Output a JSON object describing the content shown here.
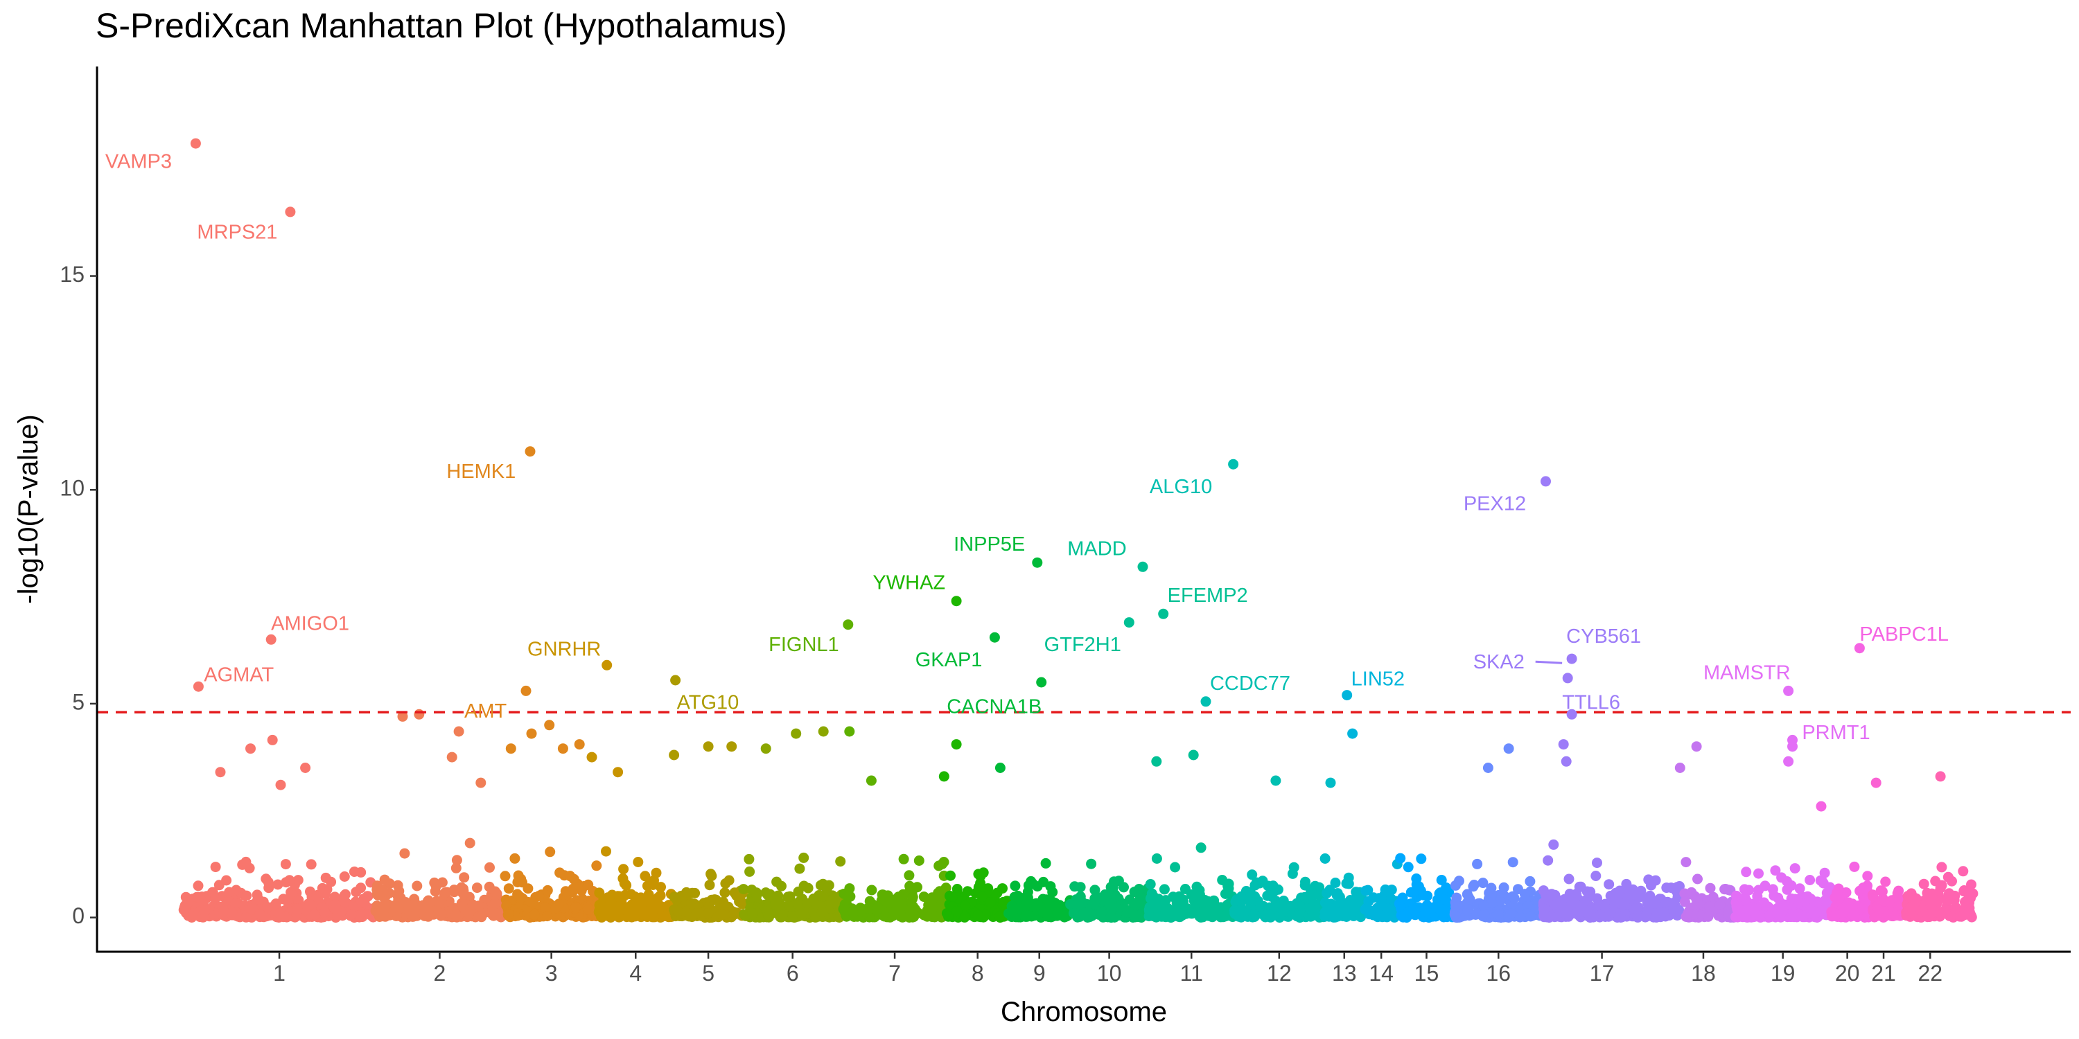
{
  "chart_data": {
    "type": "scatter",
    "title": "S-PrediXcan Manhattan Plot (Hypothalamus)",
    "xlabel": "Chromosome",
    "ylabel": "-log10(P-value)",
    "ylim": [
      -0.8,
      19.9
    ],
    "yticks": [
      0,
      5,
      10,
      15
    ],
    "xlim": [
      0,
      2880
    ],
    "threshold": 4.8,
    "threshold_color": "#e41a1c",
    "grid": false,
    "legend": "none",
    "chromosomes": [
      {
        "label": "1",
        "start": 126,
        "end": 406,
        "center": 266,
        "color": "#f8766d"
      },
      {
        "label": "2",
        "start": 406,
        "end": 595,
        "center": 500,
        "color": "#f07e56"
      },
      {
        "label": "3",
        "start": 595,
        "end": 731,
        "center": 663,
        "color": "#e0871d"
      },
      {
        "label": "4",
        "start": 731,
        "end": 842,
        "center": 786,
        "color": "#c89400"
      },
      {
        "label": "5",
        "start": 842,
        "end": 943,
        "center": 892,
        "color": "#ac9b00"
      },
      {
        "label": "6",
        "start": 943,
        "end": 1088,
        "center": 1015,
        "color": "#8ba600"
      },
      {
        "label": "7",
        "start": 1088,
        "end": 1240,
        "center": 1164,
        "color": "#5eb000"
      },
      {
        "label": "8",
        "start": 1240,
        "end": 1330,
        "center": 1285,
        "color": "#1db600"
      },
      {
        "label": "9",
        "start": 1330,
        "end": 1420,
        "center": 1375,
        "color": "#00ba38"
      },
      {
        "label": "10",
        "start": 1420,
        "end": 1534,
        "center": 1477,
        "color": "#00bd6c"
      },
      {
        "label": "11",
        "start": 1534,
        "end": 1660,
        "center": 1597,
        "color": "#00c094"
      },
      {
        "label": "12",
        "start": 1660,
        "end": 1790,
        "center": 1725,
        "color": "#00bfb1"
      },
      {
        "label": "13",
        "start": 1790,
        "end": 1850,
        "center": 1820,
        "color": "#00bcc6"
      },
      {
        "label": "14",
        "start": 1850,
        "end": 1900,
        "center": 1874,
        "color": "#00b5dc"
      },
      {
        "label": "15",
        "start": 1900,
        "end": 1980,
        "center": 1940,
        "color": "#00a9ff"
      },
      {
        "label": "16",
        "start": 1980,
        "end": 2110,
        "center": 2045,
        "color": "#6b8cff"
      },
      {
        "label": "17",
        "start": 2110,
        "end": 2310,
        "center": 2196,
        "color": "#9c7cf8"
      },
      {
        "label": "18",
        "start": 2310,
        "end": 2390,
        "center": 2344,
        "color": "#c475f0"
      },
      {
        "label": "19",
        "start": 2390,
        "end": 2530,
        "center": 2460,
        "color": "#e36ef6"
      },
      {
        "label": "20",
        "start": 2530,
        "end": 2590,
        "center": 2554,
        "color": "#f564e3"
      },
      {
        "label": "21",
        "start": 2590,
        "end": 2640,
        "center": 2607,
        "color": "#fa62d3"
      },
      {
        "label": "22",
        "start": 2640,
        "end": 2740,
        "center": 2675,
        "color": "#ff64b0"
      }
    ],
    "highlighted": [
      {
        "gene": "VAMP3",
        "chr": "1",
        "x": 144,
        "y": 18.1,
        "label_x": 12,
        "label_y": 17.65,
        "anchor": "start"
      },
      {
        "gene": "MRPS21",
        "chr": "1",
        "x": 282,
        "y": 16.5,
        "label_x": 146,
        "label_y": 16.0,
        "anchor": "start"
      },
      {
        "gene": "AMIGO1",
        "chr": "1",
        "x": 254,
        "y": 6.5,
        "label_x": 254,
        "label_y": 6.85,
        "anchor": "start"
      },
      {
        "gene": "AGMAT",
        "chr": "1",
        "x": 148,
        "y": 5.4,
        "label_x": 156,
        "label_y": 5.65,
        "anchor": "start"
      },
      {
        "gene": "HEMK1",
        "chr": "3",
        "x": 632,
        "y": 10.9,
        "label_x": 510,
        "label_y": 10.4,
        "anchor": "start"
      },
      {
        "gene": "GNRHR",
        "chr": "4",
        "x": 744,
        "y": 5.9,
        "label_x": 628,
        "label_y": 6.25,
        "anchor": "start"
      },
      {
        "gene": "AMT",
        "chr": "3",
        "x": 626,
        "y": 5.3,
        "label_x": 536,
        "label_y": 4.8,
        "anchor": "start"
      },
      {
        "gene": "ATG10",
        "chr": "5",
        "x": 844,
        "y": 5.55,
        "label_x": 846,
        "label_y": 5.0,
        "anchor": "start"
      },
      {
        "gene": "FIGNL1",
        "chr": "7",
        "x": 1096,
        "y": 6.85,
        "label_x": 980,
        "label_y": 6.35,
        "anchor": "start"
      },
      {
        "gene": "YWHAZ",
        "chr": "8",
        "x": 1254,
        "y": 7.4,
        "label_x": 1132,
        "label_y": 7.8,
        "anchor": "start"
      },
      {
        "gene": "INPP5E",
        "chr": "9",
        "x": 1372,
        "y": 8.3,
        "label_x": 1250,
        "label_y": 8.7,
        "anchor": "start"
      },
      {
        "gene": "MADD",
        "chr": "11",
        "x": 1526,
        "y": 8.2,
        "label_x": 1416,
        "label_y": 8.6,
        "anchor": "start"
      },
      {
        "gene": "GKAP1",
        "chr": "9",
        "x": 1310,
        "y": 6.55,
        "label_x": 1194,
        "label_y": 6.0,
        "anchor": "start"
      },
      {
        "gene": "GTF2H1",
        "chr": "11",
        "x": 1506,
        "y": 6.9,
        "label_x": 1382,
        "label_y": 6.35,
        "anchor": "start"
      },
      {
        "gene": "EFEMP2",
        "chr": "11",
        "x": 1556,
        "y": 7.1,
        "label_x": 1562,
        "label_y": 7.5,
        "anchor": "start"
      },
      {
        "gene": "CACNA1B",
        "chr": "9",
        "x": 1378,
        "y": 5.5,
        "label_x": 1240,
        "label_y": 4.9,
        "anchor": "start"
      },
      {
        "gene": "ALG10",
        "chr": "12",
        "x": 1658,
        "y": 10.6,
        "label_x": 1536,
        "label_y": 10.05,
        "anchor": "start"
      },
      {
        "gene": "CCDC77",
        "chr": "12",
        "x": 1618,
        "y": 5.05,
        "label_x": 1624,
        "label_y": 5.45,
        "anchor": "start"
      },
      {
        "gene": "LIN52",
        "chr": "14",
        "x": 1824,
        "y": 5.2,
        "label_x": 1830,
        "label_y": 5.55,
        "anchor": "start"
      },
      {
        "gene": "PEX12",
        "chr": "17",
        "x": 2114,
        "y": 10.2,
        "label_x": 1994,
        "label_y": 9.65,
        "anchor": "start"
      },
      {
        "gene": "CYB561",
        "chr": "17",
        "x": 2152,
        "y": 6.05,
        "label_x": 2144,
        "label_y": 6.55,
        "anchor": "start"
      },
      {
        "gene": "SKA2",
        "chr": "17",
        "x": 2146,
        "y": 5.6,
        "label_x": 2008,
        "label_y": 5.95,
        "anchor": "start",
        "connector": true
      },
      {
        "gene": "TTLL6",
        "chr": "17",
        "x": 2152,
        "y": 4.75,
        "label_x": 2138,
        "label_y": 5.0,
        "anchor": "start"
      },
      {
        "gene": "MAMSTR",
        "chr": "19",
        "x": 2468,
        "y": 5.3,
        "label_x": 2344,
        "label_y": 5.7,
        "anchor": "start"
      },
      {
        "gene": "PRMT1",
        "chr": "19",
        "x": 2474,
        "y": 4.15,
        "label_x": 2488,
        "label_y": 4.3,
        "anchor": "start"
      },
      {
        "gene": "PABPC1L",
        "chr": "20",
        "x": 2572,
        "y": 6.3,
        "label_x": 2572,
        "label_y": 6.6,
        "anchor": "start"
      }
    ],
    "peaks": [
      {
        "chr": "1",
        "x": 180,
        "y": 3.4
      },
      {
        "chr": "1",
        "x": 256,
        "y": 4.15
      },
      {
        "chr": "1",
        "x": 224,
        "y": 3.95
      },
      {
        "chr": "1",
        "x": 304,
        "y": 3.5
      },
      {
        "chr": "1",
        "x": 268,
        "y": 3.1
      },
      {
        "chr": "2",
        "x": 446,
        "y": 4.7
      },
      {
        "chr": "2",
        "x": 470,
        "y": 4.75
      },
      {
        "chr": "2",
        "x": 528,
        "y": 4.35
      },
      {
        "chr": "2",
        "x": 518,
        "y": 3.75
      },
      {
        "chr": "2",
        "x": 560,
        "y": 3.15
      },
      {
        "chr": "3",
        "x": 604,
        "y": 3.95
      },
      {
        "chr": "3",
        "x": 634,
        "y": 4.3
      },
      {
        "chr": "3",
        "x": 660,
        "y": 4.5
      },
      {
        "chr": "3",
        "x": 680,
        "y": 3.95
      },
      {
        "chr": "3",
        "x": 704,
        "y": 4.05
      },
      {
        "chr": "4",
        "x": 722,
        "y": 3.75
      },
      {
        "chr": "4",
        "x": 760,
        "y": 3.4
      },
      {
        "chr": "5",
        "x": 842,
        "y": 3.8
      },
      {
        "chr": "5",
        "x": 892,
        "y": 4.0
      },
      {
        "chr": "5",
        "x": 926,
        "y": 4.0
      },
      {
        "chr": "6",
        "x": 976,
        "y": 3.95
      },
      {
        "chr": "6",
        "x": 1020,
        "y": 4.3
      },
      {
        "chr": "6",
        "x": 1060,
        "y": 4.35
      },
      {
        "chr": "7",
        "x": 1098,
        "y": 4.35
      },
      {
        "chr": "7",
        "x": 1130,
        "y": 3.2
      },
      {
        "chr": "8",
        "x": 1254,
        "y": 4.05
      },
      {
        "chr": "8",
        "x": 1236,
        "y": 3.3
      },
      {
        "chr": "9",
        "x": 1318,
        "y": 3.5
      },
      {
        "chr": "11",
        "x": 1546,
        "y": 3.65
      },
      {
        "chr": "11",
        "x": 1600,
        "y": 3.8
      },
      {
        "chr": "12",
        "x": 1720,
        "y": 3.2
      },
      {
        "chr": "14",
        "x": 1832,
        "y": 4.3
      },
      {
        "chr": "13",
        "x": 1800,
        "y": 3.15
      },
      {
        "chr": "16",
        "x": 2060,
        "y": 3.95
      },
      {
        "chr": "16",
        "x": 2030,
        "y": 3.5
      },
      {
        "chr": "17",
        "x": 2140,
        "y": 4.05
      },
      {
        "chr": "17",
        "x": 2144,
        "y": 3.65
      },
      {
        "chr": "18",
        "x": 2334,
        "y": 4.0
      },
      {
        "chr": "18",
        "x": 2310,
        "y": 3.5
      },
      {
        "chr": "19",
        "x": 2474,
        "y": 4.0
      },
      {
        "chr": "19",
        "x": 2468,
        "y": 3.65
      },
      {
        "chr": "20",
        "x": 2516,
        "y": 2.6
      },
      {
        "chr": "21",
        "x": 2596,
        "y": 3.15
      },
      {
        "chr": "22",
        "x": 2690,
        "y": 3.3
      }
    ]
  }
}
